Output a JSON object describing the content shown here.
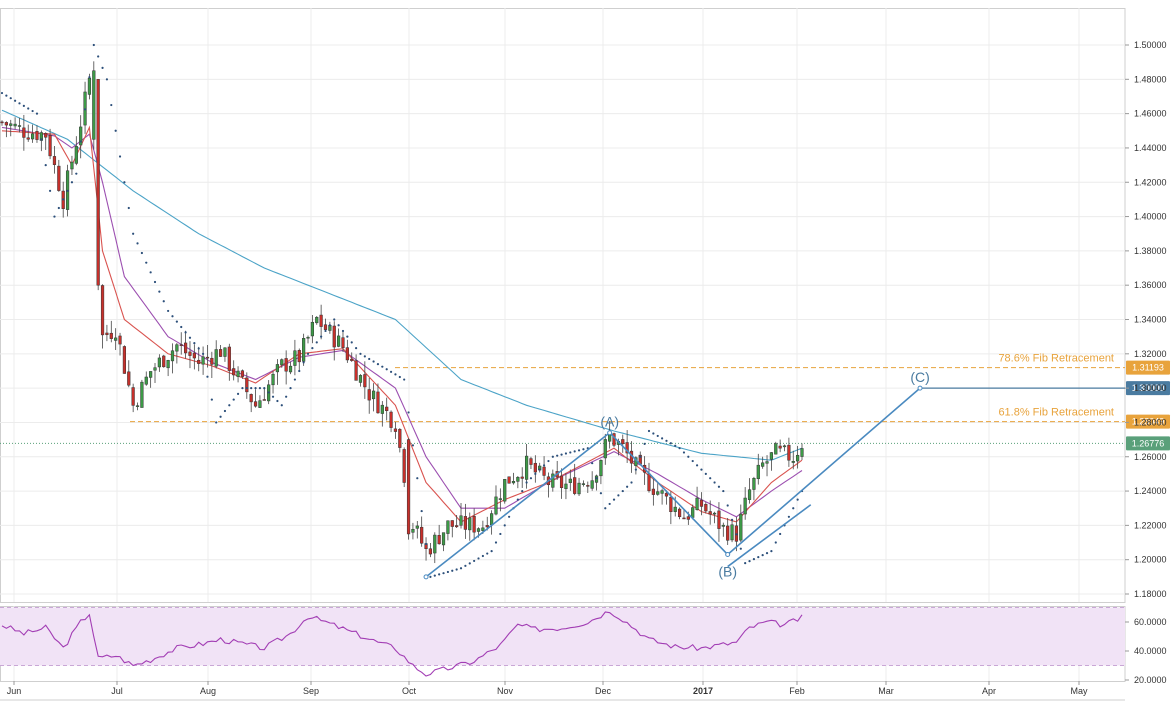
{
  "chart_data": [
    {
      "type": "candlestick",
      "y_axis": {
        "position": "right",
        "ylim": [
          1.17,
          1.51
        ],
        "ticks": [
          1.5,
          1.48,
          1.46,
          1.44,
          1.42,
          1.4,
          1.38,
          1.36,
          1.34,
          1.32,
          1.3,
          1.28,
          1.26,
          1.24,
          1.22,
          1.2,
          1.18
        ],
        "tick_labels": [
          "1.50000",
          "1.48000",
          "1.46000",
          "1.44000",
          "1.42000",
          "1.40000",
          "1.38000",
          "1.36000",
          "1.34000",
          "1.32000",
          "1.30000",
          "1.28000",
          "1.26000",
          "1.24000",
          "1.22000",
          "1.20000",
          "1.18000"
        ]
      },
      "x_axis": {
        "labels": [
          "Jun",
          "Jul",
          "Aug",
          "Sep",
          "Oct",
          "Nov",
          "Dec",
          "2017",
          "Feb",
          "Mar",
          "Apr",
          "May"
        ],
        "bold_label": "2017"
      },
      "grid": true,
      "price_path_anchors": [
        [
          0,
          1.455
        ],
        [
          5,
          1.45
        ],
        [
          10,
          1.448
        ],
        [
          14,
          1.41
        ],
        [
          18,
          1.455
        ],
        [
          20,
          1.48
        ],
        [
          21,
          1.44
        ],
        [
          22,
          1.37
        ],
        [
          23,
          1.33
        ],
        [
          26,
          1.335
        ],
        [
          30,
          1.29
        ],
        [
          34,
          1.31
        ],
        [
          40,
          1.325
        ],
        [
          45,
          1.315
        ],
        [
          50,
          1.322
        ],
        [
          55,
          1.302
        ],
        [
          58,
          1.29
        ],
        [
          64,
          1.313
        ],
        [
          68,
          1.318
        ],
        [
          72,
          1.34
        ],
        [
          78,
          1.324
        ],
        [
          84,
          1.297
        ],
        [
          90,
          1.28
        ],
        [
          92,
          1.25
        ],
        [
          94,
          1.22
        ],
        [
          97,
          1.205
        ],
        [
          102,
          1.22
        ],
        [
          110,
          1.22
        ],
        [
          115,
          1.245
        ],
        [
          120,
          1.255
        ],
        [
          125,
          1.245
        ],
        [
          130,
          1.243
        ],
        [
          135,
          1.248
        ],
        [
          139,
          1.272
        ],
        [
          142,
          1.265
        ],
        [
          146,
          1.25
        ],
        [
          150,
          1.24
        ],
        [
          156,
          1.225
        ],
        [
          160,
          1.232
        ],
        [
          165,
          1.218
        ],
        [
          168,
          1.215
        ],
        [
          171,
          1.24
        ],
        [
          174,
          1.255
        ],
        [
          177,
          1.262
        ],
        [
          181,
          1.26
        ],
        [
          183,
          1.268
        ]
      ],
      "moving_averages": [
        {
          "color": "#4ba3c7",
          "anchors": [
            [
              0,
              1.462
            ],
            [
              15,
              1.445
            ],
            [
              30,
              1.415
            ],
            [
              45,
              1.39
            ],
            [
              60,
              1.37
            ],
            [
              75,
              1.355
            ],
            [
              90,
              1.34
            ],
            [
              105,
              1.305
            ],
            [
              120,
              1.29
            ],
            [
              140,
              1.275
            ],
            [
              160,
              1.262
            ],
            [
              176,
              1.258
            ],
            [
              183,
              1.265
            ]
          ]
        },
        {
          "color": "#9c4fb0",
          "anchors": [
            [
              0,
              1.452
            ],
            [
              12,
              1.447
            ],
            [
              16,
              1.44
            ],
            [
              20,
              1.448
            ],
            [
              23,
              1.42
            ],
            [
              28,
              1.365
            ],
            [
              38,
              1.33
            ],
            [
              48,
              1.315
            ],
            [
              58,
              1.305
            ],
            [
              68,
              1.318
            ],
            [
              78,
              1.322
            ],
            [
              90,
              1.3
            ],
            [
              97,
              1.26
            ],
            [
              105,
              1.23
            ],
            [
              115,
              1.23
            ],
            [
              125,
              1.245
            ],
            [
              140,
              1.263
            ],
            [
              150,
              1.25
            ],
            [
              160,
              1.235
            ],
            [
              168,
              1.225
            ],
            [
              176,
              1.24
            ],
            [
              183,
              1.252
            ]
          ]
        },
        {
          "color": "#d9534f",
          "anchors": [
            [
              0,
              1.45
            ],
            [
              12,
              1.448
            ],
            [
              16,
              1.43
            ],
            [
              20,
              1.452
            ],
            [
              23,
              1.38
            ],
            [
              28,
              1.34
            ],
            [
              38,
              1.32
            ],
            [
              48,
              1.313
            ],
            [
              58,
              1.303
            ],
            [
              68,
              1.32
            ],
            [
              78,
              1.323
            ],
            [
              90,
              1.29
            ],
            [
              97,
              1.245
            ],
            [
              105,
              1.222
            ],
            [
              115,
              1.235
            ],
            [
              125,
              1.245
            ],
            [
              140,
              1.265
            ],
            [
              150,
              1.245
            ],
            [
              160,
              1.228
            ],
            [
              168,
              1.222
            ],
            [
              176,
              1.245
            ],
            [
              183,
              1.258
            ]
          ]
        }
      ],
      "parabolic_sar_anchors": [
        [
          0,
          1.472
        ],
        [
          8,
          1.46
        ],
        [
          12,
          1.4
        ],
        [
          17,
          1.425
        ],
        [
          21,
          1.5
        ],
        [
          24,
          1.48
        ],
        [
          30,
          1.39
        ],
        [
          38,
          1.345
        ],
        [
          46,
          1.32
        ],
        [
          49,
          1.28
        ],
        [
          55,
          1.3
        ],
        [
          60,
          1.3
        ],
        [
          64,
          1.29
        ],
        [
          70,
          1.32
        ],
        [
          76,
          1.34
        ],
        [
          82,
          1.32
        ],
        [
          92,
          1.305
        ],
        [
          98,
          1.19
        ],
        [
          105,
          1.195
        ],
        [
          112,
          1.205
        ],
        [
          120,
          1.245
        ],
        [
          126,
          1.26
        ],
        [
          134,
          1.265
        ],
        [
          138,
          1.23
        ],
        [
          144,
          1.245
        ],
        [
          148,
          1.275
        ],
        [
          155,
          1.265
        ],
        [
          165,
          1.24
        ],
        [
          170,
          1.198
        ],
        [
          176,
          1.205
        ],
        [
          183,
          1.24
        ]
      ],
      "horizontal_levels": [
        {
          "value": 1.31193,
          "label": "78.6% Fib Retracement",
          "badge": "1.31193",
          "style": "dashed",
          "color": "#e8a33c",
          "extent": "from-jul"
        },
        {
          "value": 1.28049,
          "label": "61.8% Fib Retracement",
          "badge": "1.28049",
          "style": "dashed",
          "color": "#e8a33c",
          "extent": "full"
        },
        {
          "value": 1.3,
          "badge": "1.30000",
          "style": "solid",
          "color": "#4a7ba0",
          "extent": "from-c"
        },
        {
          "value": 1.26776,
          "badge": "1.26776",
          "style": "dotted",
          "color": "#5aa07a",
          "extent": "full"
        }
      ],
      "wave_labels": [
        {
          "label": "(A)",
          "value": 1.274,
          "index": 139
        },
        {
          "label": "(B)",
          "value": 1.203,
          "index": 166
        },
        {
          "label": "(C)",
          "value": 1.3,
          "index": 210
        }
      ],
      "wave_path": [
        {
          "index": 97,
          "value": 1.19
        },
        {
          "index": 139,
          "value": 1.274
        },
        {
          "index": 166,
          "value": 1.203
        },
        {
          "index": 210,
          "value": 1.3
        }
      ]
    },
    {
      "type": "line",
      "indicator": "oscillator",
      "y_axis": {
        "position": "right",
        "ylim": [
          15,
          72
        ],
        "ticks": [
          60,
          40,
          20
        ],
        "tick_labels": [
          "60.0000",
          "40.0000",
          "20.0000"
        ],
        "band": [
          30,
          70
        ]
      },
      "anchors": [
        [
          0,
          58
        ],
        [
          5,
          52
        ],
        [
          10,
          56
        ],
        [
          14,
          42
        ],
        [
          18,
          60
        ],
        [
          20,
          66
        ],
        [
          22,
          35
        ],
        [
          26,
          37
        ],
        [
          30,
          30
        ],
        [
          34,
          34
        ],
        [
          40,
          42
        ],
        [
          46,
          45
        ],
        [
          50,
          48
        ],
        [
          55,
          45
        ],
        [
          60,
          42
        ],
        [
          66,
          52
        ],
        [
          70,
          64
        ],
        [
          74,
          60
        ],
        [
          80,
          53
        ],
        [
          86,
          46
        ],
        [
          90,
          42
        ],
        [
          94,
          30
        ],
        [
          97,
          24
        ],
        [
          102,
          28
        ],
        [
          108,
          33
        ],
        [
          114,
          44
        ],
        [
          118,
          58
        ],
        [
          122,
          55
        ],
        [
          128,
          56
        ],
        [
          134,
          60
        ],
        [
          139,
          68
        ],
        [
          142,
          62
        ],
        [
          148,
          48
        ],
        [
          154,
          43
        ],
        [
          160,
          42
        ],
        [
          164,
          44
        ],
        [
          168,
          46
        ],
        [
          171,
          56
        ],
        [
          175,
          60
        ],
        [
          179,
          58
        ],
        [
          183,
          63
        ]
      ]
    }
  ]
}
